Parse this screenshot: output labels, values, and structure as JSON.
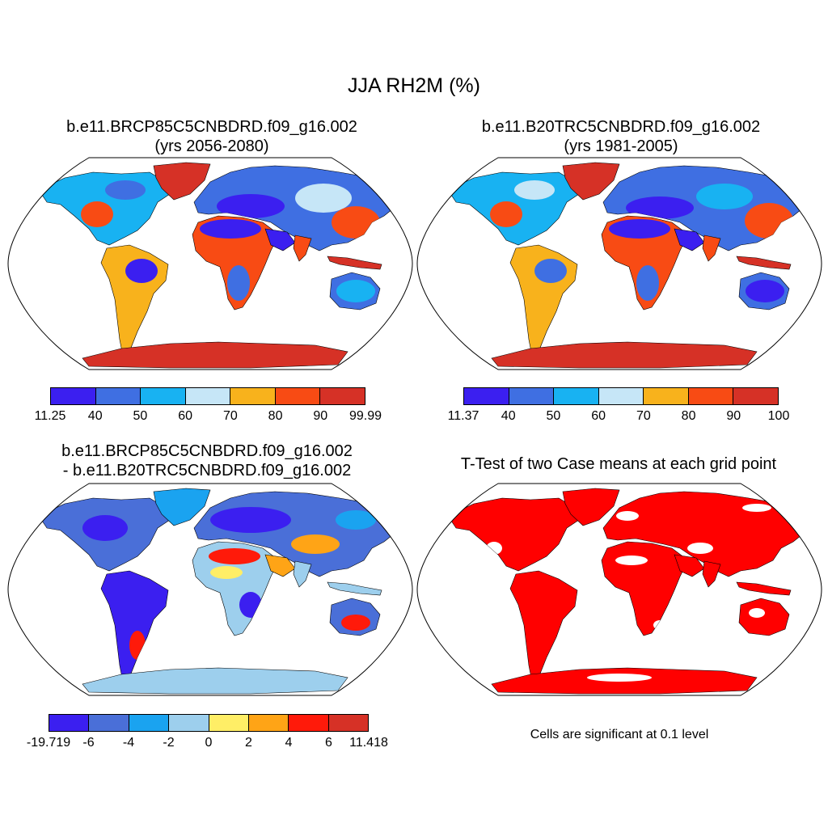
{
  "figure": {
    "title": "JJA RH2M (%)"
  },
  "panels": [
    {
      "id": "p1",
      "title_line1": "b.e11.BRCP85C5CNBDRD.f09_g16.002",
      "title_line2": "(yrs 2056-2080)",
      "colorbar": {
        "labels": [
          "11.25",
          "40",
          "50",
          "60",
          "70",
          "80",
          "90",
          "99.99"
        ],
        "colors": [
          "#3b1ff0",
          "#3f6fe2",
          "#18b2f2",
          "#c6e6f7",
          "#f8b21c",
          "#f84b14",
          "#d63126"
        ]
      }
    },
    {
      "id": "p2",
      "title_line1": "b.e11.B20TRC5CNBDRD.f09_g16.002",
      "title_line2": "(yrs 1981-2005)",
      "colorbar": {
        "labels": [
          "11.37",
          "40",
          "50",
          "60",
          "70",
          "80",
          "90",
          "100"
        ],
        "colors": [
          "#3b1ff0",
          "#3f6fe2",
          "#18b2f2",
          "#c6e6f7",
          "#f8b21c",
          "#f84b14",
          "#d63126"
        ]
      }
    },
    {
      "id": "p3",
      "title_line1": "b.e11.BRCP85C5CNBDRD.f09_g16.002",
      "title_line2": "- b.e11.B20TRC5CNBDRD.f09_g16.002",
      "colorbar": {
        "labels": [
          "-19.719",
          "-6",
          "-4",
          "-2",
          "0",
          "2",
          "4",
          "6",
          "11.418"
        ],
        "colors": [
          "#3b1ff0",
          "#4a6fd8",
          "#1aa3f0",
          "#9dcfed",
          "#ffee66",
          "#ffa416",
          "#ff1a0a",
          "#d63126"
        ]
      }
    },
    {
      "id": "p4",
      "title_line1": "T-Test of two Case means at each grid point",
      "note": "Cells are significant at 0.1 level",
      "fill_color": "#ff0000"
    }
  ]
}
